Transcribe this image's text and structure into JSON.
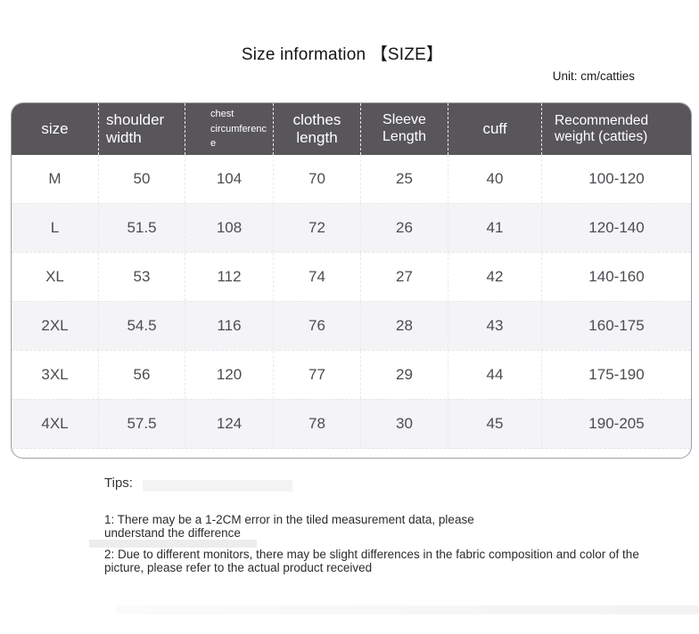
{
  "page": {
    "title": "Size information 【SIZE】",
    "unit_note": "Unit: cm/catties"
  },
  "size_table": {
    "columns": [
      {
        "key": "size",
        "label": "size"
      },
      {
        "key": "shoulder_width",
        "label": "shoulder width"
      },
      {
        "key": "chest_circumference",
        "label_line1": "chest",
        "label_line2": "circumference"
      },
      {
        "key": "clothes_length",
        "label": "clothes length"
      },
      {
        "key": "sleeve_length",
        "label": "Sleeve Length"
      },
      {
        "key": "cuff",
        "label": "cuff"
      },
      {
        "key": "recommended_weight",
        "label": "Recommended weight (catties)"
      }
    ],
    "rows": [
      {
        "size": "M",
        "shoulder_width": "50",
        "chest_circumference": "104",
        "clothes_length": "70",
        "sleeve_length": "25",
        "cuff": "40",
        "recommended_weight": "100-120"
      },
      {
        "size": "L",
        "shoulder_width": "51.5",
        "chest_circumference": "108",
        "clothes_length": "72",
        "sleeve_length": "26",
        "cuff": "41",
        "recommended_weight": "120-140"
      },
      {
        "size": "XL",
        "shoulder_width": "53",
        "chest_circumference": "112",
        "clothes_length": "74",
        "sleeve_length": "27",
        "cuff": "42",
        "recommended_weight": "140-160"
      },
      {
        "size": "2XL",
        "shoulder_width": "54.5",
        "chest_circumference": "116",
        "clothes_length": "76",
        "sleeve_length": "28",
        "cuff": "43",
        "recommended_weight": "160-175"
      },
      {
        "size": "3XL",
        "shoulder_width": "56",
        "chest_circumference": "120",
        "clothes_length": "77",
        "sleeve_length": "29",
        "cuff": "44",
        "recommended_weight": "175-190"
      },
      {
        "size": "4XL",
        "shoulder_width": "57.5",
        "chest_circumference": "124",
        "clothes_length": "78",
        "sleeve_length": "30",
        "cuff": "45",
        "recommended_weight": "190-205"
      }
    ]
  },
  "tips": {
    "heading": "Tips:",
    "items": [
      "1: There may be a 1-2CM error in the tiled measurement data, please understand the difference",
      "2: Due to different monitors, there may be slight differences in the fabric composition and color of the picture, please refer to the actual product received"
    ]
  },
  "colors": {
    "header_bg": "#58565a",
    "header_text": "#ffffff",
    "stripe_bg": "#f4f4f6",
    "body_text": "#4c4c51",
    "table_border": "#9f9f9f",
    "dashed_divider": "#e9e9ec"
  }
}
